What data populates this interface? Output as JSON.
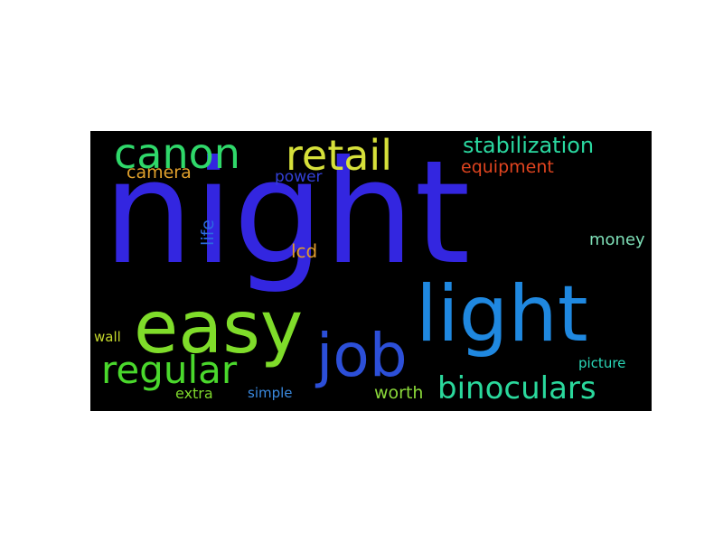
{
  "words": [
    {
      "text": "night",
      "color": "#3326e0"
    },
    {
      "text": "light",
      "color": "#1f88e0"
    },
    {
      "text": "easy",
      "color": "#7fdc2a"
    },
    {
      "text": "job",
      "color": "#2c4fd8"
    },
    {
      "text": "canon",
      "color": "#2fd86a"
    },
    {
      "text": "retail",
      "color": "#d6e03a"
    },
    {
      "text": "regular",
      "color": "#4ad82c"
    },
    {
      "text": "binoculars",
      "color": "#2ad89c"
    },
    {
      "text": "stabilization",
      "color": "#2ad8a0"
    },
    {
      "text": "equipment",
      "color": "#e0441f"
    },
    {
      "text": "camera",
      "color": "#e0a02c"
    },
    {
      "text": "power",
      "color": "#3340d8"
    },
    {
      "text": "life",
      "color": "#2c6ae0"
    },
    {
      "text": "lcd",
      "color": "#e09a2c"
    },
    {
      "text": "money",
      "color": "#7fe0b8"
    },
    {
      "text": "wall",
      "color": "#c4d82c"
    },
    {
      "text": "picture",
      "color": "#2ad8b8"
    },
    {
      "text": "extra",
      "color": "#7ed82c"
    },
    {
      "text": "simple",
      "color": "#3a8ae0"
    },
    {
      "text": "worth",
      "color": "#8ad83a"
    }
  ]
}
